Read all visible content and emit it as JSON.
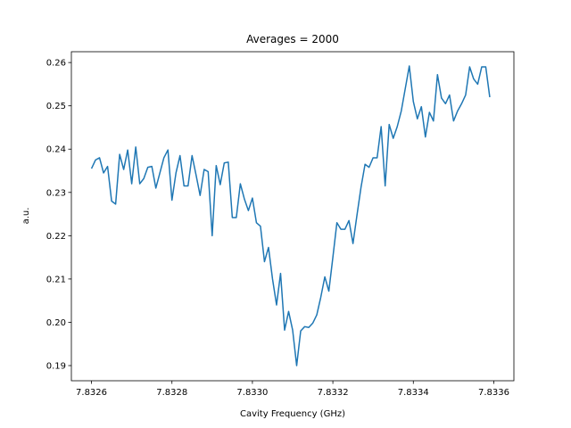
{
  "chart_data": {
    "type": "line",
    "title": "Averages = 2000",
    "xlabel": "Cavity Frequency (GHz)",
    "ylabel": "a.u.",
    "xlim": [
      7.83255,
      7.83365
    ],
    "ylim": [
      0.1865,
      0.2625
    ],
    "grid": false,
    "line_color": "#1f77b4",
    "xticks": [
      {
        "value": 7.8326,
        "label": "7.8326"
      },
      {
        "value": 7.8328,
        "label": "7.8328"
      },
      {
        "value": 7.833,
        "label": "7.8330"
      },
      {
        "value": 7.8332,
        "label": "7.8332"
      },
      {
        "value": 7.8334,
        "label": "7.8334"
      },
      {
        "value": 7.8336,
        "label": "7.8336"
      }
    ],
    "yticks": [
      {
        "value": 0.19,
        "label": "0.19"
      },
      {
        "value": 0.2,
        "label": "0.20"
      },
      {
        "value": 0.21,
        "label": "0.21"
      },
      {
        "value": 0.22,
        "label": "0.22"
      },
      {
        "value": 0.23,
        "label": "0.23"
      },
      {
        "value": 0.24,
        "label": "0.24"
      },
      {
        "value": 0.25,
        "label": "0.25"
      },
      {
        "value": 0.26,
        "label": "0.26"
      }
    ],
    "series": [
      {
        "x_start": 7.8326,
        "x_step": 1e-05,
        "values": [
          0.2355,
          0.2375,
          0.238,
          0.2345,
          0.236,
          0.228,
          0.2273,
          0.2388,
          0.2353,
          0.2398,
          0.232,
          0.2405,
          0.232,
          0.2332,
          0.2358,
          0.236,
          0.231,
          0.2345,
          0.238,
          0.2398,
          0.2282,
          0.2345,
          0.2385,
          0.2315,
          0.2315,
          0.2385,
          0.234,
          0.2293,
          0.2353,
          0.2348,
          0.22,
          0.2362,
          0.2318,
          0.2368,
          0.237,
          0.2242,
          0.2242,
          0.232,
          0.2285,
          0.2258,
          0.2287,
          0.223,
          0.2222,
          0.214,
          0.2173,
          0.21,
          0.204,
          0.2113,
          0.1982,
          0.2025,
          0.1982,
          0.19,
          0.198,
          0.199,
          0.1988,
          0.1998,
          0.2017,
          0.2058,
          0.2105,
          0.2072,
          0.215,
          0.223,
          0.2215,
          0.2215,
          0.2235,
          0.2182,
          0.2248,
          0.2312,
          0.2365,
          0.2358,
          0.238,
          0.238,
          0.2452,
          0.2315,
          0.2457,
          0.2425,
          0.2452,
          0.2488,
          0.254,
          0.2592,
          0.251,
          0.247,
          0.2498,
          0.2428,
          0.2485,
          0.2465,
          0.2572,
          0.2518,
          0.2505,
          0.2525,
          0.2465,
          0.2488,
          0.2505,
          0.2525,
          0.259,
          0.2562,
          0.255,
          0.259,
          0.259,
          0.252
        ]
      }
    ]
  }
}
